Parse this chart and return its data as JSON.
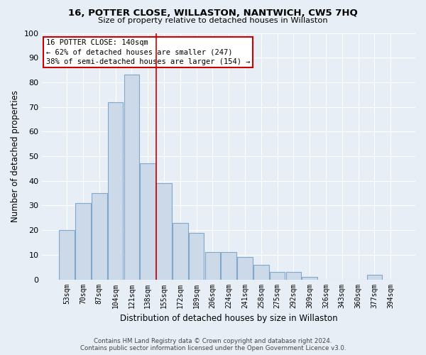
{
  "title": "16, POTTER CLOSE, WILLASTON, NANTWICH, CW5 7HQ",
  "subtitle": "Size of property relative to detached houses in Willaston",
  "xlabel": "Distribution of detached houses by size in Willaston",
  "ylabel": "Number of detached properties",
  "categories": [
    "53sqm",
    "70sqm",
    "87sqm",
    "104sqm",
    "121sqm",
    "138sqm",
    "155sqm",
    "172sqm",
    "189sqm",
    "206sqm",
    "224sqm",
    "241sqm",
    "258sqm",
    "275sqm",
    "292sqm",
    "309sqm",
    "326sqm",
    "343sqm",
    "360sqm",
    "377sqm",
    "394sqm"
  ],
  "values": [
    20,
    31,
    35,
    72,
    83,
    47,
    39,
    23,
    19,
    11,
    11,
    9,
    6,
    3,
    3,
    1,
    0,
    0,
    0,
    2,
    0
  ],
  "bar_color": "#ccd9e8",
  "bar_edge_color": "#7fa8cc",
  "background_color": "#e8eef5",
  "grid_color": "#ffffff",
  "vline_x": 5.5,
  "vline_color": "#cc0000",
  "annotation_line1": "16 POTTER CLOSE: 140sqm",
  "annotation_line2": "← 62% of detached houses are smaller (247)",
  "annotation_line3": "38% of semi-detached houses are larger (154) →",
  "annotation_box_color": "#ffffff",
  "annotation_box_edge": "#cc0000",
  "ylim": [
    0,
    100
  ],
  "yticks": [
    0,
    10,
    20,
    30,
    40,
    50,
    60,
    70,
    80,
    90,
    100
  ],
  "footer_line1": "Contains HM Land Registry data © Crown copyright and database right 2024.",
  "footer_line2": "Contains public sector information licensed under the Open Government Licence v3.0."
}
